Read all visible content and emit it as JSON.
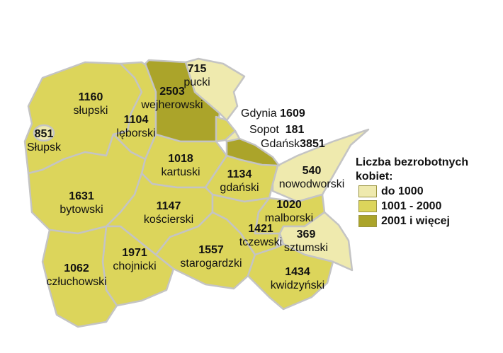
{
  "colors": {
    "low": "#efeaae",
    "mid": "#dcd55b",
    "high": "#aba42a",
    "border": "#c4c4c4"
  },
  "regions": [
    {
      "id": "slupski",
      "name": "słupski",
      "value": "1160",
      "cls": "mid"
    },
    {
      "id": "slupsk",
      "name": "Słupsk",
      "value": "851",
      "cls": "low"
    },
    {
      "id": "leborski",
      "name": "lęborski",
      "value": "1104",
      "cls": "mid"
    },
    {
      "id": "wejherowski",
      "name": "wejherowski",
      "value": "2503",
      "cls": "high"
    },
    {
      "id": "pucki",
      "name": "pucki",
      "value": "715",
      "cls": "low"
    },
    {
      "id": "kartuski",
      "name": "kartuski",
      "value": "1018",
      "cls": "mid"
    },
    {
      "id": "gdanski",
      "name": "gdański",
      "value": "1134",
      "cls": "mid"
    },
    {
      "id": "nowodworski",
      "name": "nowodworski",
      "value": "540",
      "cls": "low"
    },
    {
      "id": "bytowski",
      "name": "bytowski",
      "value": "1631",
      "cls": "mid"
    },
    {
      "id": "koscierski",
      "name": "kościerski",
      "value": "1147",
      "cls": "mid"
    },
    {
      "id": "chojnicki",
      "name": "chojnicki",
      "value": "1971",
      "cls": "mid"
    },
    {
      "id": "czluchowski",
      "name": "człuchowski",
      "value": "1062",
      "cls": "mid"
    },
    {
      "id": "starogardzki",
      "name": "starogardzki",
      "value": "1557",
      "cls": "mid"
    },
    {
      "id": "tczewski",
      "name": "tczewski",
      "value": "1421",
      "cls": "mid"
    },
    {
      "id": "malborski",
      "name": "malborski",
      "value": "1020",
      "cls": "mid"
    },
    {
      "id": "sztumski",
      "name": "sztumski",
      "value": "369",
      "cls": "low"
    },
    {
      "id": "kwidzynski",
      "name": "kwidzyński",
      "value": "1434",
      "cls": "mid"
    }
  ],
  "cities": [
    {
      "id": "gdynia",
      "name": "Gdynia",
      "value": "1609",
      "cls": "mid"
    },
    {
      "id": "sopot",
      "name": "Sopot",
      "value": "181",
      "cls": "low"
    },
    {
      "id": "gdansk",
      "name": "Gdańsk",
      "value": "3851",
      "cls": "high"
    }
  ],
  "legend": {
    "title": "Liczba bezrobotnych kobiet:",
    "items": [
      {
        "label": "do 1000",
        "cls": "low"
      },
      {
        "label": "1001 - 2000",
        "cls": "mid"
      },
      {
        "label": "2001 i więcej",
        "cls": "high"
      }
    ]
  }
}
